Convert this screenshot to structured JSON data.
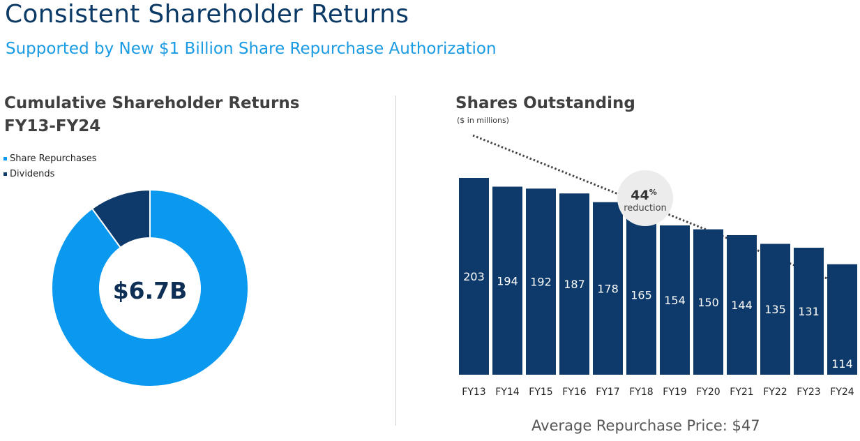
{
  "title": "Consistent Shareholder Returns",
  "subtitle": "Supported by New $1 Billion Share Repurchase Authorization",
  "left": {
    "title_line1": "Cumulative Shareholder Returns",
    "title_line2": "FY13-FY24",
    "center_label": "$6.7B"
  },
  "right": {
    "title": "Shares Outstanding",
    "units": "($ in millions)",
    "reduction_value": "44",
    "reduction_unit": "%",
    "reduction_label": "reduction",
    "footnote": "Average Repurchase Price: $47"
  },
  "colors": {
    "navy": "#0d3a6b",
    "light_blue": "#0a99ef",
    "title_blue": "#0b3a66",
    "subtitle_blue": "#1a9be3",
    "badge_gray": "#ececec"
  },
  "chart_data": [
    {
      "type": "pie",
      "title": "Cumulative Shareholder Returns FY13-FY24",
      "legend_position": "top-left",
      "series": [
        {
          "name": "Share Repurchases",
          "value": 90,
          "color": "#0a99ef"
        },
        {
          "name": "Dividends",
          "value": 10,
          "color": "#0d3a6b"
        }
      ],
      "center_label": "$6.7B"
    },
    {
      "type": "bar",
      "title": "Shares Outstanding",
      "categories": [
        "FY13",
        "FY14",
        "FY15",
        "FY16",
        "FY17",
        "FY18",
        "FY19",
        "FY20",
        "FY21",
        "FY22",
        "FY23",
        "FY24"
      ],
      "values": [
        203,
        194,
        192,
        187,
        178,
        165,
        154,
        150,
        144,
        135,
        131,
        114
      ],
      "ylim": [
        0,
        203
      ],
      "xlabel": "",
      "ylabel": "",
      "grid": false,
      "annotation": "44% reduction",
      "bar_color": "#0d3a6b"
    }
  ]
}
